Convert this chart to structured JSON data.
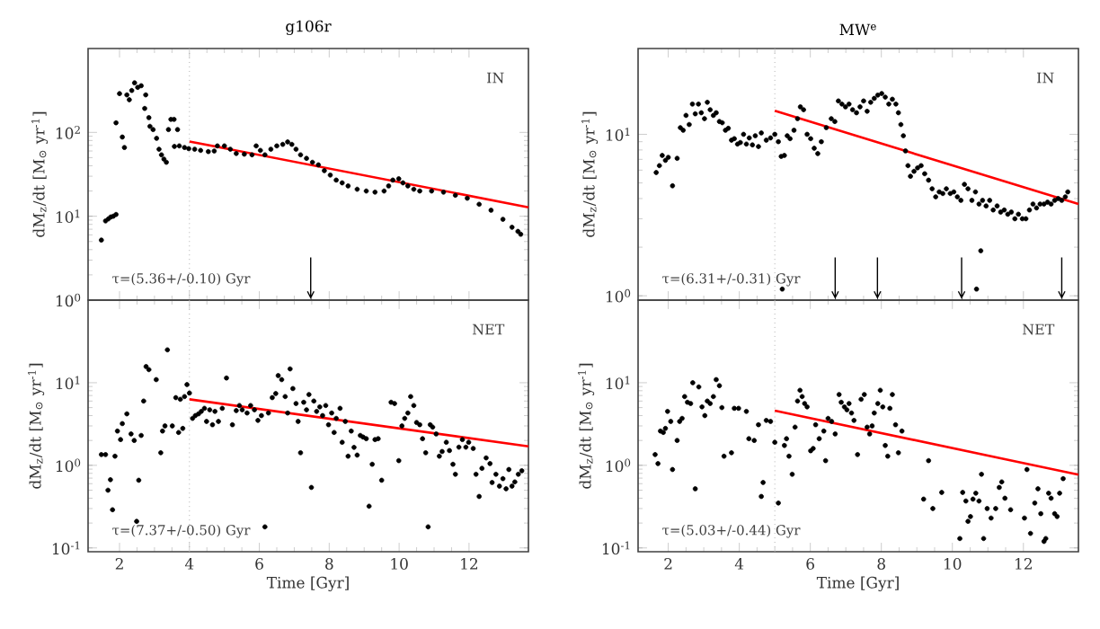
{
  "chart_data": [
    {
      "type": "scatter",
      "title": "g106r",
      "ylabel": "dM$_{z}$/dt [M$_{⊙}$ yr$^{-1}$]",
      "log": "y",
      "tick_labels": "y",
      "xlim": [
        1.1,
        13.7
      ],
      "ylim": [
        1,
        1000
      ],
      "xticks": [
        2,
        4,
        6,
        8,
        10,
        12
      ],
      "yticks": [
        {
          "value": 1,
          "label": "10$^{0}$"
        },
        {
          "value": 10,
          "label": "10$^{1}$"
        },
        {
          "value": 100,
          "label": "10$^{2}$"
        }
      ],
      "annotations": [
        "IN",
        "τ=(5.36+/-0.10) Gyr"
      ],
      "ref_lines": [
        {
          "axis": "x",
          "value": 4,
          "color": "#b0b0b0",
          "line_style": "dotted"
        },
        {
          "axis": "x",
          "value": 7.47,
          "color": "#000000"
        }
      ],
      "series": [
        {
          "color": "#000000",
          "marker": "circle",
          "x": [
            1.48,
            1.6,
            1.68,
            1.75,
            1.82,
            1.9,
            1.9,
            2.0,
            2.08,
            2.14,
            2.21,
            2.28,
            2.35,
            2.43,
            2.52,
            2.62,
            2.72,
            2.75,
            2.84,
            2.87,
            2.96,
            3.06,
            3.13,
            3.2,
            3.27,
            3.34,
            3.4,
            3.47,
            3.56,
            3.66,
            3.57,
            3.71,
            3.86,
            3.98,
            4.15,
            4.32,
            4.54,
            4.71,
            4.8,
            5.0,
            5.17,
            5.34,
            5.57,
            5.79,
            5.91,
            6.03,
            6.16,
            6.33,
            6.5,
            6.67,
            6.81,
            6.93,
            7.05,
            7.18,
            7.35,
            7.52,
            7.69,
            7.86,
            8.03,
            8.2,
            8.37,
            8.54,
            8.8,
            9.06,
            9.31,
            9.57,
            9.7,
            9.82,
            9.99,
            10.11,
            10.25,
            10.42,
            10.59,
            10.93,
            11.27,
            11.61,
            11.95,
            12.29,
            12.63,
            12.97,
            13.23,
            13.4,
            13.48
          ],
          "values": [
            5.2,
            8.8,
            9.3,
            9.8,
            10,
            10.5,
            130,
            290,
            88,
            66,
            280,
            245,
            316,
            390,
            344,
            360,
            193,
            280,
            150,
            118,
            108,
            85,
            63,
            54,
            48,
            44,
            108,
            143,
            143,
            108,
            68,
            69,
            66,
            64,
            63,
            61,
            59,
            60,
            69,
            69,
            63,
            56,
            55,
            54,
            69,
            61,
            54,
            63,
            69,
            72,
            77,
            72,
            63,
            54,
            49,
            44,
            41,
            35,
            31,
            27,
            25,
            23,
            21,
            20,
            19.4,
            20,
            23,
            27,
            28,
            25,
            23,
            21,
            20,
            20,
            19.4,
            17.8,
            16.4,
            13.9,
            11.8,
            9.2,
            7.4,
            6.6,
            6.1
          ]
        },
        {
          "type": "line",
          "color": "#ff0000",
          "x": [
            4,
            13.7
          ],
          "values": [
            78,
            12.8
          ]
        }
      ]
    },
    {
      "type": "scatter",
      "title": "MW$^{e}$",
      "ylabel": "dM$_{z}$/dt [M$_{⊙}$ yr$^{-1}$]",
      "log": "y",
      "tick_labels": "y",
      "xlim": [
        1.15,
        13.55
      ],
      "ylim": [
        0.94,
        34
      ],
      "xticks": [
        2,
        4,
        6,
        8,
        10,
        12
      ],
      "yticks": [
        {
          "value": 1,
          "label": "10$^{0}$"
        },
        {
          "value": 10,
          "label": "10$^{1}$"
        }
      ],
      "annotations": [
        "IN",
        "τ=(6.31+/-0.31) Gyr"
      ],
      "ref_lines": [
        {
          "axis": "x",
          "value": 5,
          "color": "#b0b0b0",
          "line_style": "dotted"
        },
        {
          "axis": "x",
          "value": 6.7,
          "color": "#000000"
        },
        {
          "axis": "x",
          "value": 7.89,
          "color": "#000000"
        },
        {
          "axis": "x",
          "value": 10.26,
          "color": "#000000"
        },
        {
          "axis": "x",
          "value": 13.08,
          "color": "#000000"
        }
      ],
      "series": [
        {
          "color": "#000000",
          "marker": "circle",
          "x": [
            1.66,
            1.75,
            1.83,
            1.92,
            2.0,
            2.12,
            2.25,
            2.34,
            2.42,
            2.5,
            2.59,
            2.68,
            2.76,
            2.85,
            2.93,
            3.02,
            3.1,
            3.18,
            3.27,
            3.35,
            3.44,
            3.52,
            3.61,
            3.69,
            3.78,
            3.86,
            3.95,
            4.03,
            4.12,
            4.2,
            4.28,
            4.37,
            4.45,
            4.54,
            4.62,
            4.76,
            4.88,
            5.0,
            5.1,
            5.18,
            5.27,
            5.35,
            5.43,
            5.54,
            5.64,
            5.72,
            5.81,
            5.91,
            6.01,
            6.11,
            6.21,
            6.31,
            6.45,
            6.59,
            6.69,
            6.79,
            6.89,
            6.99,
            7.09,
            7.19,
            7.3,
            7.4,
            7.5,
            7.6,
            7.7,
            7.8,
            7.9,
            8.01,
            8.11,
            8.21,
            8.31,
            8.41,
            8.48,
            8.55,
            8.62,
            8.68,
            8.75,
            8.82,
            8.92,
            9.02,
            9.12,
            9.22,
            9.33,
            9.43,
            9.53,
            9.63,
            9.73,
            9.83,
            9.94,
            10.04,
            10.14,
            10.24,
            10.34,
            10.44,
            10.55,
            10.65,
            10.75,
            10.85,
            10.95,
            11.05,
            11.15,
            11.26,
            11.36,
            11.46,
            11.56,
            11.66,
            11.76,
            11.86,
            11.97,
            12.07,
            12.17,
            12.27,
            12.37,
            12.47,
            12.58,
            12.68,
            12.78,
            12.88,
            12.98,
            13.08,
            13.18,
            13.25,
            5.21,
            10.8,
            10.68
          ],
          "values": [
            5.8,
            6.4,
            7.4,
            6.9,
            7.2,
            4.8,
            7.1,
            11.0,
            10.6,
            13.1,
            11.5,
            15.4,
            13.4,
            15.4,
            13.6,
            12.5,
            15.8,
            14.2,
            13.1,
            13.6,
            12.0,
            11.8,
            10.6,
            10.9,
            9.2,
            9.4,
            8.7,
            8.9,
            10.0,
            8.7,
            9.5,
            8.6,
            9.8,
            8.4,
            10.2,
            9.2,
            9.5,
            10,
            9.0,
            7.3,
            7.4,
            9.8,
            9.4,
            10.6,
            12.5,
            14.8,
            14.2,
            10,
            9.4,
            8.2,
            7.6,
            9.0,
            11.0,
            12.5,
            12.0,
            16.1,
            15.4,
            14.8,
            15.4,
            14.2,
            13.6,
            14.8,
            16.1,
            13.9,
            15.8,
            16.7,
            17.5,
            17.9,
            17,
            15.4,
            16.5,
            15.4,
            13.6,
            11.5,
            9.8,
            7.9,
            6.4,
            5.5,
            5.9,
            6.2,
            6.4,
            5.7,
            5.2,
            4.6,
            4.1,
            4.4,
            4.3,
            4.6,
            4.3,
            4.4,
            4.1,
            3.9,
            4.9,
            4.6,
            3.9,
            4.4,
            3.7,
            3.9,
            3.6,
            3.9,
            3.4,
            3.6,
            3.3,
            3.4,
            3.2,
            3.3,
            3.0,
            3.2,
            3.0,
            3.0,
            3.4,
            3.7,
            3.5,
            3.7,
            3.7,
            3.8,
            3.7,
            3.9,
            4.0,
            3.9,
            4.1,
            4.4,
            1.1,
            1.9,
            1.1
          ]
        },
        {
          "type": "line",
          "color": "#ff0000",
          "x": [
            5,
            13.55
          ],
          "values": [
            14,
            3.7
          ]
        }
      ]
    },
    {
      "type": "scatter",
      "xlabel": "Time [Gyr]",
      "ylabel": "dM$_{z}$/dt [M$_{⊙}$ yr$^{-1}$]",
      "log": "y",
      "xlim": [
        1.1,
        13.7
      ],
      "ylim": [
        0.09,
        100
      ],
      "xticks": [
        2,
        4,
        6,
        8,
        10,
        12
      ],
      "yticks": [
        {
          "value": 0.1,
          "label": "10$^{-1}$"
        },
        {
          "value": 1,
          "label": "10$^{0}$"
        },
        {
          "value": 10,
          "label": "10$^{1}$"
        }
      ],
      "annotations": [
        "NET",
        "τ=(7.37+/-0.50) Gyr"
      ],
      "ref_lines": [
        {
          "axis": "x",
          "value": 4,
          "color": "#b0b0b0",
          "line_style": "dotted"
        }
      ],
      "series": [
        {
          "color": "#000000",
          "marker": "circle",
          "x": [
            1.48,
            1.6,
            1.67,
            1.74,
            1.8,
            1.87,
            1.94,
            2.03,
            2.08,
            2.21,
            2.33,
            2.42,
            2.49,
            2.55,
            2.62,
            2.69,
            2.76,
            2.84,
            3.05,
            3.18,
            3.23,
            3.3,
            3.37,
            3.51,
            3.61,
            3.69,
            3.74,
            3.81,
            3.86,
            3.93,
            4.0,
            4.09,
            4.17,
            4.26,
            4.34,
            4.43,
            4.49,
            4.58,
            4.66,
            4.73,
            4.83,
            4.94,
            5.06,
            5.23,
            5.34,
            5.43,
            5.51,
            5.65,
            5.75,
            5.86,
            5.96,
            6.06,
            6.16,
            6.26,
            6.37,
            6.47,
            6.54,
            6.64,
            6.74,
            6.81,
            6.88,
            6.96,
            7.05,
            7.11,
            7.18,
            7.27,
            7.35,
            7.42,
            7.49,
            7.56,
            7.64,
            7.73,
            7.81,
            7.9,
            7.98,
            8.07,
            8.14,
            8.2,
            8.31,
            8.37,
            8.46,
            8.54,
            8.63,
            8.71,
            8.8,
            8.89,
            8.97,
            9.06,
            9.14,
            9.23,
            9.31,
            9.4,
            9.5,
            9.77,
            9.87,
            9.99,
            10.08,
            10.16,
            10.25,
            10.33,
            10.42,
            10.5,
            10.59,
            10.67,
            10.76,
            10.83,
            10.89,
            10.96,
            11.06,
            11.15,
            11.23,
            11.35,
            11.44,
            11.54,
            11.61,
            11.71,
            11.81,
            11.91,
            11.99,
            12.12,
            12.2,
            12.29,
            12.37,
            12.49,
            12.6,
            12.66,
            12.77,
            12.87,
            12.97,
            13.06,
            13.14,
            13.23,
            13.31,
            13.41,
            13.51
          ],
          "values": [
            1.35,
            1.35,
            0.5,
            0.67,
            0.29,
            1.29,
            2.6,
            2.05,
            3.2,
            4.2,
            2.4,
            2.0,
            0.21,
            0.66,
            2.3,
            6.0,
            15.7,
            14.4,
            10.9,
            1.42,
            2.6,
            3.0,
            25,
            3.0,
            6.6,
            2.5,
            6.3,
            2.8,
            6.8,
            9.5,
            7.5,
            3.7,
            4.0,
            4.2,
            4.5,
            4.9,
            3.4,
            4.7,
            3.1,
            4.5,
            3.4,
            4.9,
            11.4,
            3.1,
            4.6,
            5.3,
            4.7,
            4.3,
            5.3,
            4.7,
            3.5,
            4.0,
            0.18,
            4.3,
            6.6,
            7.4,
            12.2,
            10.9,
            6.8,
            4.3,
            14.7,
            8.5,
            5.6,
            3.4,
            1.42,
            5.8,
            4.7,
            7.2,
            0.54,
            6.0,
            4.5,
            5.1,
            4.0,
            5.3,
            3.1,
            4.3,
            2.5,
            3.7,
            4.9,
            1.9,
            3.4,
            1.29,
            2.6,
            1.65,
            1.33,
            2.3,
            2.2,
            2.1,
            0.32,
            1.03,
            2.05,
            2.1,
            0.66,
            5.8,
            5.6,
            1.14,
            3.0,
            3.7,
            4.3,
            6.8,
            5.3,
            3.3,
            3.1,
            2.1,
            1.42,
            0.18,
            3.1,
            2.9,
            2.4,
            1.29,
            1.47,
            1.9,
            1.51,
            1.03,
            0.78,
            1.66,
            2.05,
            1.66,
            1.9,
            1.6,
            0.78,
            0.42,
            0.92,
            1.23,
            1.05,
            0.62,
            0.78,
            0.56,
            0.69,
            0.52,
            0.89,
            0.56,
            0.63,
            0.78,
            0.86
          ]
        },
        {
          "type": "line",
          "color": "#ff0000",
          "x": [
            4,
            13.7
          ],
          "values": [
            6.3,
            1.7
          ]
        }
      ]
    },
    {
      "type": "scatter",
      "xlabel": "Time [Gyr]",
      "ylabel": "dM$_{z}$/dt [M$_{⊙}$ yr$^{-1}$]",
      "log": "y",
      "xlim": [
        1.15,
        13.55
      ],
      "ylim": [
        0.09,
        100
      ],
      "xticks": [
        2,
        4,
        6,
        8,
        10,
        12
      ],
      "yticks": [
        {
          "value": 0.1,
          "label": "10$^{-1}$"
        },
        {
          "value": 1,
          "label": "10$^{0}$"
        },
        {
          "value": 10,
          "label": "10$^{1}$"
        }
      ],
      "annotations": [
        "NET",
        "τ=(5.03+/-0.44) Gyr"
      ],
      "ref_lines": [
        {
          "axis": "x",
          "value": 5,
          "color": "#b0b0b0",
          "line_style": "dotted"
        }
      ],
      "series": [
        {
          "color": "#000000",
          "marker": "circle",
          "x": [
            1.63,
            1.71,
            1.78,
            1.86,
            1.92,
            1.98,
            2.07,
            2.12,
            2.25,
            2.32,
            2.39,
            2.46,
            2.54,
            2.63,
            2.69,
            2.76,
            2.86,
            2.95,
            3.03,
            3.1,
            3.18,
            3.27,
            3.35,
            3.44,
            3.51,
            3.57,
            3.78,
            3.86,
            3.98,
            4.2,
            4.27,
            4.42,
            4.54,
            4.62,
            4.67,
            4.76,
            4.88,
            5.0,
            5.1,
            5.27,
            5.33,
            5.4,
            5.49,
            5.57,
            5.64,
            5.71,
            5.77,
            5.84,
            5.91,
            6.01,
            6.08,
            6.15,
            6.25,
            6.38,
            6.43,
            6.5,
            6.6,
            6.7,
            6.81,
            6.87,
            6.96,
            7.03,
            7.09,
            7.16,
            7.23,
            7.33,
            7.43,
            7.52,
            7.6,
            7.67,
            7.74,
            7.8,
            7.9,
            7.97,
            8.04,
            8.11,
            8.18,
            8.24,
            8.31,
            8.4,
            8.48,
            8.58,
            9.19,
            9.33,
            9.45,
            9.7,
            10.21,
            10.29,
            10.38,
            10.44,
            10.51,
            10.58,
            10.66,
            10.75,
            10.82,
            10.88,
            10.98,
            11.09,
            11.22,
            11.32,
            11.39,
            11.48,
            11.64,
            12.03,
            12.1,
            12.2,
            12.32,
            12.41,
            12.49,
            12.58,
            12.63,
            12.71,
            12.78,
            12.88,
            12.95,
            13.02,
            13.12
          ],
          "values": [
            1.35,
            1.05,
            2.6,
            2.5,
            2.8,
            4.5,
            3.4,
            0.89,
            2.0,
            3.4,
            3.7,
            6.8,
            5.8,
            5.6,
            10,
            0.52,
            8.9,
            5.1,
            4.0,
            6.0,
            5.6,
            6.8,
            10.9,
            9.2,
            5.0,
            1.29,
            1.42,
            4.9,
            4.9,
            4.5,
            2.1,
            2.0,
            3.1,
            0.42,
            0.62,
            3.5,
            3.4,
            1.9,
            0.35,
            1.74,
            2.1,
            1.29,
            0.78,
            2.9,
            6.0,
            8.1,
            6.8,
            5.6,
            5.1,
            1.5,
            1.6,
            3.1,
            2.1,
            2.6,
            1.14,
            3.7,
            3.4,
            2.4,
            7.2,
            5.8,
            5.1,
            4.7,
            5.6,
            4.3,
            3.5,
            1.35,
            6.3,
            7.2,
            2.9,
            2.4,
            3.0,
            4.3,
            5.6,
            8.1,
            5.1,
            1.74,
            1.29,
            4.9,
            7.2,
            3.1,
            1.42,
            2.6,
            0.39,
            1.14,
            0.3,
            0.47,
            0.13,
            0.47,
            0.37,
            0.21,
            0.24,
            0.39,
            0.46,
            0.37,
            0.78,
            0.13,
            0.3,
            0.23,
            0.3,
            0.54,
            0.63,
            0.4,
            0.29,
            0.23,
            0.89,
            0.15,
            0.35,
            0.52,
            0.26,
            0.12,
            0.13,
            0.46,
            0.4,
            0.26,
            0.24,
            0.46,
            0.69
          ]
        },
        {
          "type": "line",
          "color": "#ff0000",
          "x": [
            5,
            13.55
          ],
          "values": [
            4.6,
            0.77
          ]
        }
      ]
    }
  ]
}
